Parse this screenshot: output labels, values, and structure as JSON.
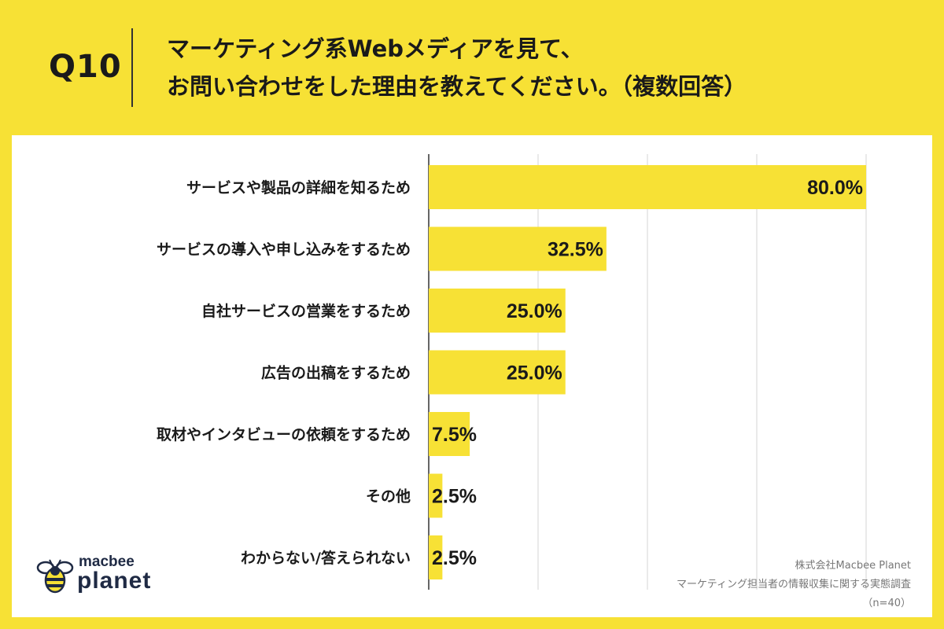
{
  "header": {
    "question_number": "Q10",
    "title_line1": "マーケティング系Webメディアを見て、",
    "title_line2": "お問い合わせをした理由を教えてください。（複数回答）"
  },
  "chart_data": {
    "type": "bar",
    "orientation": "horizontal",
    "categories": [
      "サービスや製品の詳細を知るため",
      "サービスの導入や申し込みをするため",
      "自社サービスの営業をするため",
      "広告の出稿をするため",
      "取材やインタビューの依頼をするため",
      "その他",
      "わからない/答えられない"
    ],
    "values": [
      80.0,
      32.5,
      25.0,
      25.0,
      7.5,
      2.5,
      2.5
    ],
    "labels": [
      "80.0%",
      "32.5%",
      "25.0%",
      "25.0%",
      "7.5%",
      "2.5%",
      "2.5%"
    ],
    "xlim": [
      0,
      80
    ],
    "grid": true,
    "bar_color": "#f7e135"
  },
  "source": {
    "company": "株式会社Macbee Planet",
    "survey": "マーケティング担当者の情報収集に関する実態調査",
    "n": "（n=40）"
  },
  "logo": {
    "line1": "macbee",
    "line2": "planet"
  }
}
